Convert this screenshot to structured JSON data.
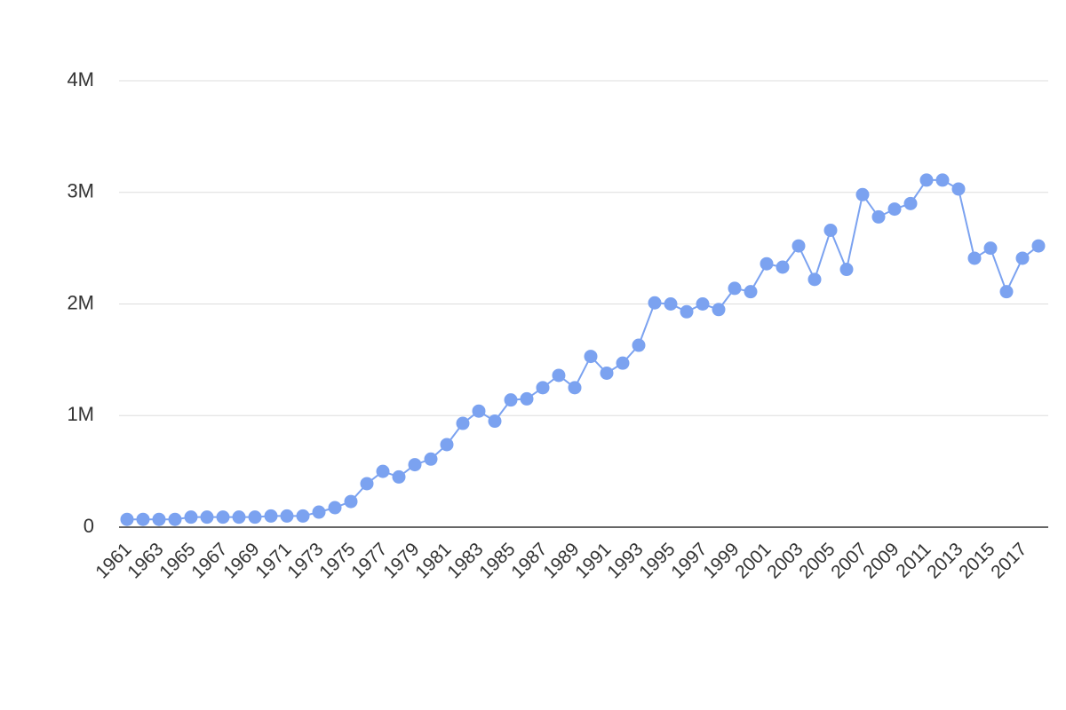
{
  "chart_data": {
    "type": "line",
    "categories": [
      "1961",
      null,
      "1963",
      null,
      "1965",
      null,
      "1967",
      null,
      "1969",
      null,
      "1971",
      null,
      "1973",
      null,
      "1975",
      null,
      "1977",
      null,
      "1979",
      null,
      "1981",
      null,
      "1983",
      null,
      "1985",
      null,
      "1987",
      null,
      "1989",
      null,
      "1991",
      null,
      "1993",
      null,
      "1995",
      null,
      "1997",
      null,
      "1999",
      null,
      "2001",
      null,
      "2003",
      null,
      "2005",
      null,
      "2007",
      null,
      "2009",
      null,
      "2011",
      null,
      "2013",
      null,
      "2015",
      null,
      "2017",
      null
    ],
    "series": [
      {
        "color": "#7ba2f0",
        "values": [
          70000,
          70000,
          70000,
          70000,
          90000,
          90000,
          90000,
          90000,
          90000,
          100000,
          100000,
          100000,
          135000,
          175000,
          230000,
          390000,
          500000,
          450000,
          560000,
          610000,
          740000,
          930000,
          1040000,
          950000,
          1140000,
          1150000,
          1250000,
          1360000,
          1250000,
          1530000,
          1380000,
          1470000,
          1630000,
          2010000,
          2000000,
          1930000,
          2000000,
          1950000,
          2140000,
          2110000,
          2360000,
          2330000,
          2520000,
          2220000,
          2660000,
          2310000,
          2980000,
          2780000,
          2850000,
          2900000,
          3110000,
          3110000,
          3030000,
          2410000,
          2500000,
          2110000,
          2410000,
          2520000
        ]
      }
    ],
    "ylim": [
      0,
      4000000
    ],
    "yticks": [
      0,
      {
        "value": 1000000,
        "label": "1M"
      },
      {
        "value": 2000000,
        "label": "2M"
      },
      {
        "value": 3000000,
        "label": "3M"
      },
      {
        "value": 4000000,
        "label": "4M"
      }
    ],
    "grid": true
  }
}
